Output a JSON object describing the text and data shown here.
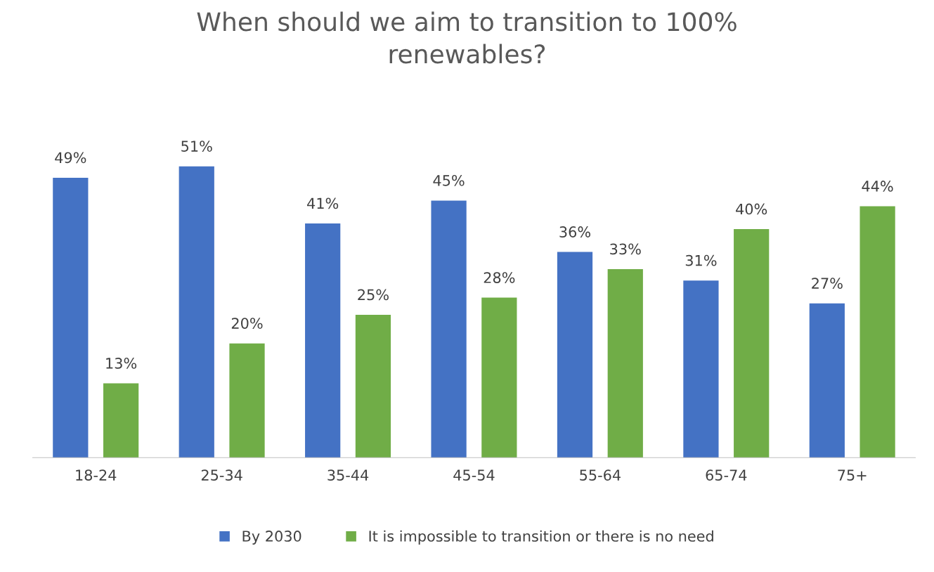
{
  "chart_data": {
    "type": "bar",
    "title": "When should we aim to transition to 100%\nrenewables?",
    "categories": [
      "18-24",
      "25-34",
      "35-44",
      "45-54",
      "55-64",
      "65-74",
      "75+"
    ],
    "series": [
      {
        "name": "By 2030",
        "color": "#4472c4",
        "values": [
          49,
          51,
          41,
          45,
          36,
          31,
          27
        ],
        "value_labels": [
          "49%",
          "51%",
          "41%",
          "45%",
          "36%",
          "31%",
          "27%"
        ]
      },
      {
        "name": "It is impossible to transition or there is no need",
        "color": "#70ad47",
        "values": [
          13,
          20,
          25,
          28,
          33,
          40,
          44
        ],
        "value_labels": [
          "13%",
          "20%",
          "25%",
          "28%",
          "33%",
          "40%",
          "44%"
        ]
      }
    ],
    "legend": "bottom",
    "grid": false
  }
}
